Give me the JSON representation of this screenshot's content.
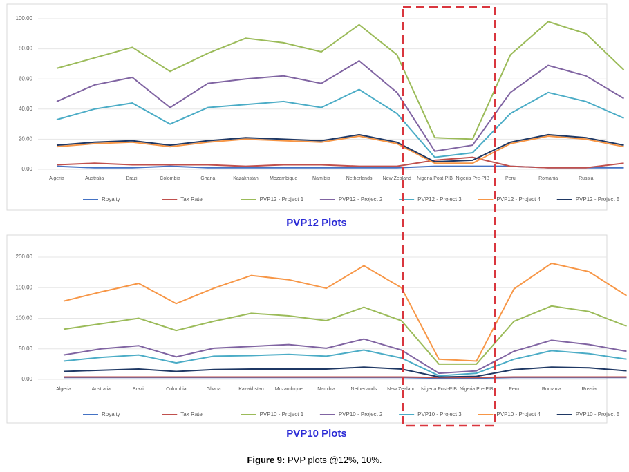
{
  "chart_data": [
    {
      "type": "line",
      "title": "PVP12 Plots",
      "categories": [
        "Algeria",
        "Australia",
        "Brazil",
        "Colombia",
        "Ghana",
        "Kazakhstan",
        "Mozambique",
        "Namibia",
        "Netherlands",
        "New Zealand",
        "Nigeria Post-PIB",
        "Nigeria Pre-PIB",
        "Peru",
        "Romania",
        "Russia",
        null
      ],
      "ylim": [
        0,
        100
      ],
      "yticks": [
        {
          "value": 0,
          "label": "0.00"
        },
        {
          "value": 20,
          "label": "20.00"
        },
        {
          "value": 40,
          "label": "40.00"
        },
        {
          "value": 60,
          "label": "60.00"
        },
        {
          "value": 80,
          "label": "80.00"
        },
        {
          "value": 100,
          "label": "100.00"
        }
      ],
      "legend": "bottom",
      "series": [
        {
          "name": "Royalty",
          "color": "#4472c4",
          "values": [
            2,
            1,
            1,
            2,
            1,
            1,
            1,
            1,
            1,
            1,
            2,
            2,
            2,
            1,
            1,
            1
          ]
        },
        {
          "name": "Tax Rate",
          "color": "#c0504d",
          "values": [
            3,
            4,
            3,
            3,
            3,
            2,
            3,
            3,
            2,
            2,
            6,
            8,
            2,
            1,
            1,
            4
          ]
        },
        {
          "name": "PVP12 - Project 1",
          "color": "#9bbb59",
          "values": [
            67,
            74,
            81,
            65,
            77,
            87,
            84,
            78,
            96,
            76,
            21,
            20,
            76,
            98,
            90,
            66
          ]
        },
        {
          "name": "PVP12 - Project 2",
          "color": "#8064a2",
          "values": [
            45,
            56,
            61,
            41,
            57,
            60,
            62,
            57,
            72,
            51,
            12,
            16,
            51,
            69,
            62,
            47
          ]
        },
        {
          "name": "PVP12 - Project 3",
          "color": "#4bacc6",
          "values": [
            33,
            40,
            44,
            30,
            41,
            43,
            45,
            41,
            53,
            37,
            8,
            11,
            37,
            51,
            45,
            34
          ]
        },
        {
          "name": "PVP12 - Project 4",
          "color": "#f79646",
          "values": [
            15,
            17,
            18,
            15,
            18,
            20,
            19,
            18,
            22,
            17,
            4,
            4,
            17,
            22,
            20,
            15
          ]
        },
        {
          "name": "PVP12 - Project 5",
          "color": "#1f3864",
          "values": [
            16,
            18,
            19,
            16,
            19,
            21,
            20,
            19,
            23,
            18,
            5,
            6,
            18,
            23,
            21,
            16
          ]
        }
      ]
    },
    {
      "type": "line",
      "title": "PVP10 Plots",
      "categories": [
        "Algeria",
        "Australia",
        "Brazil",
        "Colombia",
        "Ghana",
        "Kazakhstan",
        "Mozambique",
        "Namibia",
        "Netherlands",
        "New Zealand",
        "Nigeria Post-PIB",
        "Nigeria Pre-PIB",
        "Peru",
        "Romania",
        "Russia",
        null
      ],
      "ylim": [
        0,
        200
      ],
      "yticks": [
        {
          "value": 0,
          "label": "0.00"
        },
        {
          "value": 50,
          "label": "50.00"
        },
        {
          "value": 100,
          "label": "100.00"
        },
        {
          "value": 150,
          "label": "150.00"
        },
        {
          "value": 200,
          "label": "200.00"
        }
      ],
      "legend": "bottom",
      "series": [
        {
          "name": "Royalty",
          "color": "#4472c4",
          "values": [
            3,
            3,
            3,
            3,
            3,
            3,
            3,
            3,
            3,
            3,
            2,
            2,
            3,
            3,
            3,
            3
          ]
        },
        {
          "name": "Tax Rate",
          "color": "#c0504d",
          "values": [
            4,
            4,
            4,
            4,
            4,
            4,
            4,
            4,
            4,
            4,
            3,
            3,
            4,
            4,
            4,
            4
          ]
        },
        {
          "name": "PVP10 - Project 1",
          "color": "#9bbb59",
          "values": [
            82,
            91,
            100,
            80,
            95,
            108,
            104,
            96,
            118,
            96,
            25,
            25,
            95,
            120,
            111,
            87
          ]
        },
        {
          "name": "PVP10 - Project 2",
          "color": "#8064a2",
          "values": [
            40,
            50,
            55,
            37,
            51,
            54,
            57,
            51,
            66,
            48,
            10,
            14,
            46,
            64,
            57,
            46
          ]
        },
        {
          "name": "PVP10 - Project 3",
          "color": "#4bacc6",
          "values": [
            30,
            36,
            40,
            27,
            38,
            39,
            41,
            38,
            48,
            35,
            6,
            10,
            33,
            47,
            42,
            33
          ]
        },
        {
          "name": "PVP10 - Project 4",
          "color": "#f79646",
          "values": [
            128,
            143,
            157,
            124,
            149,
            170,
            163,
            149,
            186,
            150,
            33,
            30,
            148,
            190,
            176,
            137
          ]
        },
        {
          "name": "PVP10 - Project 5",
          "color": "#1f3864",
          "values": [
            13,
            15,
            17,
            13,
            16,
            17,
            17,
            17,
            20,
            17,
            4,
            5,
            16,
            20,
            19,
            14
          ]
        }
      ]
    }
  ],
  "caption": {
    "label": "Figure 9:",
    "text": "PVP plots @12%, 10%."
  }
}
